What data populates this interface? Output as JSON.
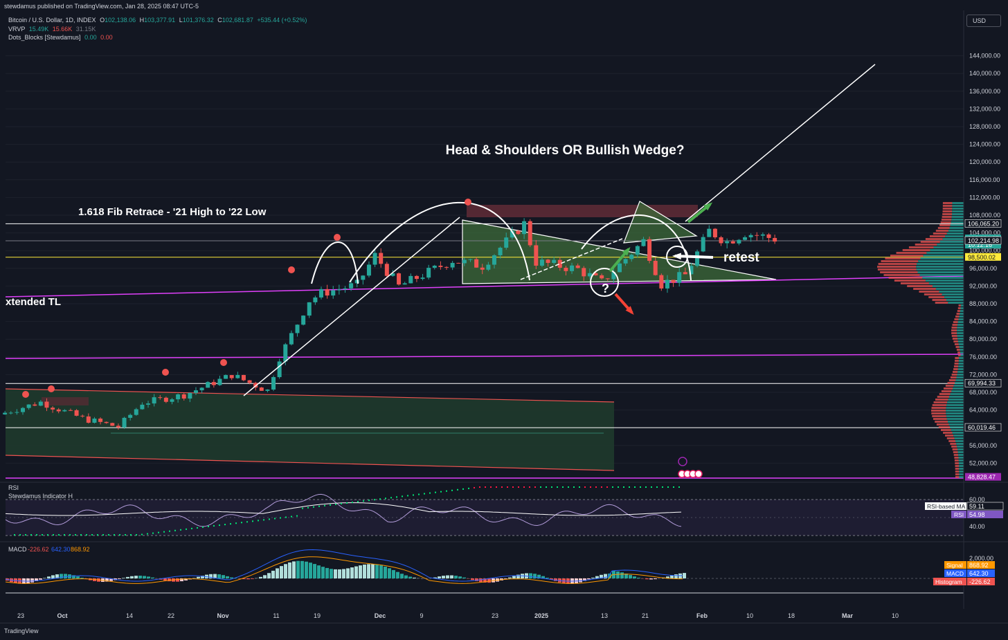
{
  "header": {
    "published": "stewdamus published on TradingView.com, Jan 28, 2025 08:47 UTC-5",
    "currency": "USD"
  },
  "legend": {
    "symbol": "Bitcoin / U.S. Dollar, 1D, INDEX",
    "o_label": "O",
    "o": "102,138.06",
    "h_label": "H",
    "h": "103,377.91",
    "l_label": "L",
    "l": "101,376.32",
    "c_label": "C",
    "c": "102,681.87",
    "chg": "+535.44 (+0.52%)",
    "vrvp_label": "VRVP",
    "vrvp1": "15.49K",
    "vrvp2": "15.66K",
    "vrvp3": "31.15K",
    "dots_label": "Dots_Blocks [Stewdamus]",
    "dots1": "0.00",
    "dots2": "0.00"
  },
  "footer": {
    "logo": "TradingView"
  },
  "colors": {
    "background": "#131722",
    "up": "#26a69a",
    "down": "#ef5350",
    "magenta": "#e040fb",
    "yellow": "#ffeb3b",
    "grid": "#1e222d"
  },
  "chart_data": [
    {
      "type": "candlestick",
      "title": "Bitcoin / U.S. Dollar, 1D, INDEX",
      "ylim": [
        48000,
        148000
      ],
      "yticks": [
        52000,
        56000,
        60000,
        64000,
        68000,
        72000,
        76000,
        80000,
        84000,
        88000,
        92000,
        96000,
        100000,
        104000,
        108000,
        112000,
        116000,
        120000,
        124000,
        128000,
        132000,
        136000,
        140000,
        144000
      ],
      "ytick_labels": [
        "52,000.00",
        "56,000.00",
        "60,000.00",
        "64,000.00",
        "68,000.00",
        "72,000.00",
        "76,000.00",
        "80,000.00",
        "84,000.00",
        "88,000.00",
        "92,000.00",
        "96,000.00",
        "100,000.00",
        "104,000.00",
        "108,000.00",
        "112,000.00",
        "116,000.00",
        "120,000.00",
        "124,000.00",
        "128,000.00",
        "132,000.00",
        "136,000.00",
        "140,000.00",
        "144,000.00"
      ],
      "x_ticks": [
        "23",
        "Oct",
        "14",
        "22",
        "Nov",
        "11",
        "19",
        "Dec",
        "9",
        "23",
        "2025",
        "13",
        "21",
        "Feb",
        "10",
        "18",
        "Mar",
        "10"
      ],
      "close_points": [
        [
          "2024-09-20",
          63000
        ],
        [
          "2024-09-27",
          65800
        ],
        [
          "2024-10-04",
          62100
        ],
        [
          "2024-10-10",
          60200
        ],
        [
          "2024-10-14",
          65600
        ],
        [
          "2024-10-21",
          67400
        ],
        [
          "2024-10-29",
          71900
        ],
        [
          "2024-11-04",
          68400
        ],
        [
          "2024-11-06",
          75800
        ],
        [
          "2024-11-11",
          88700
        ],
        [
          "2024-11-13",
          90400
        ],
        [
          "2024-11-19",
          92300
        ],
        [
          "2024-11-22",
          98900
        ],
        [
          "2024-11-26",
          91900
        ],
        [
          "2024-12-05",
          97800
        ],
        [
          "2024-12-10",
          96600
        ],
        [
          "2024-12-17",
          106100
        ],
        [
          "2024-12-19",
          97500
        ],
        [
          "2024-12-26",
          95800
        ],
        [
          "2024-12-30",
          92800
        ],
        [
          "2025-01-06",
          102200
        ],
        [
          "2025-01-09",
          92500
        ],
        [
          "2025-01-13",
          94500
        ],
        [
          "2025-01-17",
          104500
        ],
        [
          "2025-01-20",
          102000
        ],
        [
          "2025-01-23",
          104000
        ],
        [
          "2025-01-28",
          102681.87
        ]
      ],
      "price_labels": [
        {
          "value": 106065.2,
          "text": "106,065.20"
        },
        {
          "value": 102681.87,
          "text": "102,681.87",
          "sub": "10:12:16"
        },
        {
          "value": 102214.98,
          "text": "102,214.98"
        },
        {
          "value": 98500.02,
          "text": "98,500.02"
        },
        {
          "value": 69994.33,
          "text": "69,994.33"
        },
        {
          "value": 60019.46,
          "text": "60,019.46"
        },
        {
          "value": 48828.47,
          "text": "48,828.47"
        }
      ],
      "annotations": {
        "title": "Head & Shoulders OR Bullish Wedge?",
        "fib": "1.618 Fib Retrace - '21 High to '22 Low",
        "tl": "xtended TL",
        "retest": "retest",
        "question": "?"
      }
    },
    {
      "type": "line",
      "title": "RSI",
      "indicator_name": "Stewdamus Indicator H",
      "yticks": [
        60,
        40
      ],
      "ytick_labels": [
        "60.00",
        "40.00"
      ],
      "ma_label": "RSI-based MA",
      "ma_value": "59.11",
      "rsi_label": "RSI",
      "rsi_value": "54.98"
    },
    {
      "type": "bar",
      "title": "MACD",
      "values": {
        "histogram": "-226.62",
        "macd": "642.30",
        "signal": "868.92"
      },
      "ytick_labels": [
        "2,000.00"
      ],
      "signal_label": "Signal",
      "signal_value": "868.92",
      "macd_label": "MACD",
      "macd_value": "642.30",
      "hist_label": "Histogram",
      "hist_value": "-226.62"
    }
  ]
}
